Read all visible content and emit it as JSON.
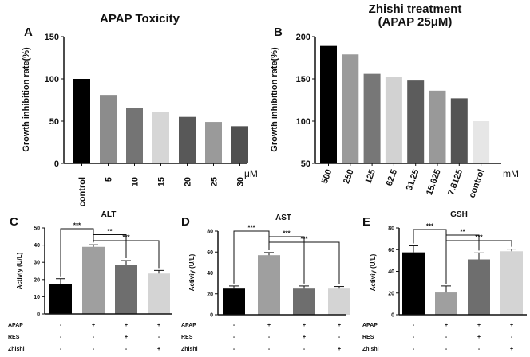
{
  "chart_data": [
    {
      "type": "bar",
      "panel": "A",
      "title": "APAP Toxicity",
      "ylabel": "Growth inhibition rate(%)",
      "ylim": [
        0,
        150
      ],
      "yticks": [
        "0",
        "50",
        "100",
        "150"
      ],
      "unit": "μM",
      "categories": [
        "control",
        "5",
        "10",
        "15",
        "20",
        "25",
        "30"
      ],
      "values": [
        100,
        81,
        66,
        61,
        55,
        49,
        44
      ],
      "colors": [
        "#000000",
        "#8c8c8c",
        "#747474",
        "#d6d6d6",
        "#585858",
        "#9a9a9a",
        "#505050"
      ]
    },
    {
      "type": "bar",
      "panel": "B",
      "title": "Zhishi treatment",
      "subtitle": "(APAP 25μM)",
      "ylabel": "Growth inhibition rate(%)",
      "ylim": [
        50,
        200
      ],
      "yticks": [
        "50",
        "100",
        "150",
        "200"
      ],
      "unit": "mM",
      "categories": [
        "500",
        "250",
        "125",
        "62.5",
        "31.25",
        "15.625",
        "7.8125",
        "control"
      ],
      "values": [
        189,
        179,
        156,
        152,
        148,
        136,
        127,
        100
      ],
      "colors": [
        "#000000",
        "#9a9a9a",
        "#777777",
        "#d2d2d2",
        "#5c5c5c",
        "#999999",
        "#545454",
        "#e6e6e6"
      ]
    },
    {
      "type": "bar",
      "panel": "C",
      "title": "ALT",
      "ylabel": "Activiy (U/L)",
      "ylim": [
        0,
        50
      ],
      "yticks": [
        "0",
        "10",
        "20",
        "30",
        "40",
        "50"
      ],
      "values": [
        17.5,
        39,
        28.5,
        23.5
      ],
      "errors": [
        3,
        1.2,
        2.5,
        1.8
      ],
      "colors": [
        "#000000",
        "#9f9f9f",
        "#6e6e6e",
        "#d4d4d4"
      ],
      "significance": [
        {
          "from": 0,
          "to": 1,
          "label": "***"
        },
        {
          "from": 1,
          "to": 2,
          "label": "**"
        },
        {
          "from": 1,
          "to": 3,
          "label": "***"
        }
      ],
      "rows": [
        {
          "label": "APAP",
          "marks": [
            "-",
            "+",
            "+",
            "+"
          ]
        },
        {
          "label": "RES",
          "marks": [
            "-",
            "-",
            "+",
            "-"
          ]
        },
        {
          "label": "Zhishi",
          "marks": [
            "-",
            "-",
            "-",
            "+"
          ]
        }
      ]
    },
    {
      "type": "bar",
      "panel": "D",
      "title": "AST",
      "ylabel": "Activiy (U/L)",
      "ylim": [
        0,
        80
      ],
      "yticks": [
        "0",
        "20",
        "40",
        "60",
        "80"
      ],
      "values": [
        25,
        57,
        25,
        25
      ],
      "errors": [
        2.5,
        2.5,
        2.5,
        2
      ],
      "colors": [
        "#000000",
        "#9f9f9f",
        "#6e6e6e",
        "#d4d4d4"
      ],
      "significance": [
        {
          "from": 0,
          "to": 1,
          "label": "***"
        },
        {
          "from": 1,
          "to": 2,
          "label": "***"
        },
        {
          "from": 1,
          "to": 3,
          "label": "***"
        }
      ],
      "rows": [
        {
          "label": "APAP",
          "marks": [
            "-",
            "+",
            "+",
            "+"
          ]
        },
        {
          "label": "RES",
          "marks": [
            "-",
            "-",
            "+",
            "-"
          ]
        },
        {
          "label": "Zhishi",
          "marks": [
            "-",
            "-",
            "-",
            "+"
          ]
        }
      ]
    },
    {
      "type": "bar",
      "panel": "E",
      "title": "GSH",
      "ylabel": "Activiy (U/L)",
      "ylim": [
        0,
        80
      ],
      "yticks": [
        "0",
        "20",
        "40",
        "60",
        "80"
      ],
      "values": [
        57.5,
        20.5,
        51,
        58.5
      ],
      "errors": [
        6,
        6,
        6,
        2
      ],
      "colors": [
        "#000000",
        "#9f9f9f",
        "#6e6e6e",
        "#d4d4d4"
      ],
      "significance": [
        {
          "from": 0,
          "to": 1,
          "label": "***"
        },
        {
          "from": 1,
          "to": 2,
          "label": "**"
        },
        {
          "from": 1,
          "to": 3,
          "label": "***"
        }
      ],
      "rows": [
        {
          "label": "APAP",
          "marks": [
            "-",
            "+",
            "+",
            "+"
          ]
        },
        {
          "label": "RES",
          "marks": [
            "-",
            "-",
            "+",
            "-"
          ]
        },
        {
          "label": "Zhishi",
          "marks": [
            "-",
            "-",
            "-",
            "+"
          ]
        }
      ]
    }
  ]
}
